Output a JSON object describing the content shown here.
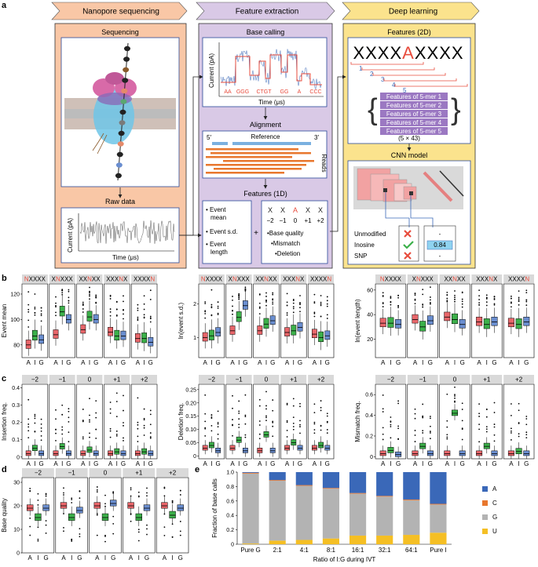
{
  "panel_labels": {
    "a": "a",
    "b": "b",
    "c": "c",
    "d": "d",
    "e": "e"
  },
  "pipeline": {
    "stages": [
      "Nanopore sequencing",
      "Feature extraction",
      "Deep learning"
    ],
    "nanopore": {
      "sequencing_title": "Sequencing",
      "raw_data_title": "Raw data",
      "raw_ylabel": "Current (pA)",
      "raw_xlabel": "Time (μs)"
    },
    "feature": {
      "base_calling_title": "Base calling",
      "bc_ylabel": "Current (pA)",
      "bc_xlabel": "Time (μs)",
      "bc_bases": [
        "AA",
        "GGG",
        "CTGT",
        "GG",
        "A",
        "CCC"
      ],
      "alignment_title": "Alignment",
      "ref_5": "5′",
      "ref_label": "Reference",
      "ref_3": "3′",
      "reads_label": "Reads",
      "features1d_title": "Features (1D)",
      "event_items": [
        "Event mean",
        "Event s.d.",
        "Event length"
      ],
      "plus": "+",
      "kmer_letters": [
        "X",
        "X",
        "A",
        "X",
        "X"
      ],
      "kmer_positions": [
        "−2",
        "−1",
        "0",
        "+1",
        "+2"
      ],
      "quality_items": [
        "Base quality",
        "Mismatch",
        "Deletion"
      ]
    },
    "deep": {
      "features2d_title": "Features (2D)",
      "sequence_left": "XXXX",
      "sequence_mid": "A",
      "sequence_right": "XXXX",
      "bracket_numbers": [
        "1",
        "2",
        "3",
        "4",
        "5"
      ],
      "feature_rows": [
        "Features of 5-mer 1",
        "Features of 5-mer 2",
        "Features of 5-mer 3",
        "Features of 5-mer 4",
        "Features of 5-mer 5"
      ],
      "matrix_size": "(5 × 43)",
      "cnn_title": "CNN model",
      "outputs": [
        {
          "label": "Unmodified",
          "mark": "cross",
          "value": "-"
        },
        {
          "label": "Inosine",
          "mark": "check",
          "value": "0.84"
        },
        {
          "label": "SNP",
          "mark": "cross",
          "value": "-"
        }
      ]
    }
  },
  "box_groups": [
    "A",
    "I",
    "G"
  ],
  "colors": {
    "A": "#e8666a",
    "I": "#3cb04a",
    "G": "#6a8ed0",
    "stage_orange": "#f9c7a6",
    "stage_purple": "#d9c9e6",
    "stage_yellow": "#fbe38d",
    "accent_red": "#e84c3d",
    "feature_purple": "#9b78c2"
  },
  "panel_b": {
    "facets": [
      {
        "plain_left": "",
        "red": "N",
        "plain_right": "XXXX"
      },
      {
        "plain_left": "X",
        "red": "N",
        "plain_right": "XXX"
      },
      {
        "plain_left": "XX",
        "red": "N",
        "plain_right": "XX"
      },
      {
        "plain_left": "XXX",
        "red": "N",
        "plain_right": "X"
      },
      {
        "plain_left": "XXXX",
        "red": "N",
        "plain_right": ""
      }
    ],
    "plots": [
      {
        "ylabel": "Event mean",
        "yticks": [
          "80",
          "100",
          "120"
        ],
        "ymin": 70,
        "ymax": 128,
        "medians": [
          [
            80,
            87,
            84
          ],
          [
            88,
            106,
            100
          ],
          [
            92,
            102,
            100
          ],
          [
            90,
            87,
            87
          ],
          [
            85,
            85,
            82
          ]
        ]
      },
      {
        "ylabel": "ln(event s.d.)",
        "yticks": [
          "1",
          "2"
        ],
        "ymin": 0.4,
        "ymax": 2.6,
        "medians": [
          [
            1.0,
            1.05,
            1.15
          ],
          [
            1.2,
            1.6,
            1.95
          ],
          [
            1.2,
            1.4,
            1.5
          ],
          [
            1.15,
            1.2,
            1.3
          ],
          [
            1.1,
            1.0,
            1.05
          ]
        ]
      },
      {
        "ylabel": "ln(event length)",
        "yticks": [
          "20",
          "40",
          "60"
        ],
        "ymin": 5,
        "ymax": 65,
        "medians": [
          [
            33,
            33,
            32
          ],
          [
            36,
            30,
            35
          ],
          [
            38,
            36,
            32
          ],
          [
            34,
            32,
            34
          ],
          [
            33,
            32,
            34
          ]
        ]
      }
    ]
  },
  "panel_c": {
    "facets": [
      "−2",
      "−1",
      "0",
      "+1",
      "+2"
    ],
    "plots": [
      {
        "ylabel": "Insertion freq.",
        "yticks": [
          "0",
          "0.1",
          "0.2",
          "0.3",
          "0.4"
        ],
        "ymin": -0.01,
        "ymax": 0.42,
        "medians": [
          [
            0.02,
            0.05,
            0.02
          ],
          [
            0.02,
            0.06,
            0.02
          ],
          [
            0.02,
            0.04,
            0.02
          ],
          [
            0.02,
            0.03,
            0.02
          ],
          [
            0.02,
            0.03,
            0.02
          ]
        ]
      },
      {
        "ylabel": "Deletion freq.",
        "yticks": [
          "0",
          "0.05",
          "0.10",
          "0.15",
          "0.20",
          "0.25"
        ],
        "ymin": -0.01,
        "ymax": 0.27,
        "medians": [
          [
            0.03,
            0.04,
            0.02
          ],
          [
            0.03,
            0.06,
            0.02
          ],
          [
            0.02,
            0.08,
            0.02
          ],
          [
            0.03,
            0.05,
            0.03
          ],
          [
            0.03,
            0.04,
            0.03
          ]
        ]
      },
      {
        "ylabel": "Mismatch freq.",
        "yticks": [
          "0",
          "0.2",
          "0.4",
          "0.6"
        ],
        "ymin": -0.02,
        "ymax": 0.7,
        "medians": [
          [
            0.03,
            0.06,
            0.02
          ],
          [
            0.03,
            0.1,
            0.03
          ],
          [
            0.03,
            0.42,
            0.03
          ],
          [
            0.03,
            0.1,
            0.03
          ],
          [
            0.03,
            0.05,
            0.03
          ]
        ]
      }
    ]
  },
  "panel_d": {
    "facets": [
      "−2",
      "−1",
      "0",
      "+1",
      "+2"
    ],
    "ylabel": "Base quality",
    "yticks": [
      "0",
      "10",
      "20",
      "30"
    ],
    "ymin": 0,
    "ymax": 32,
    "medians": [
      [
        19,
        15,
        19
      ],
      [
        20,
        15,
        18
      ],
      [
        20,
        15,
        21
      ],
      [
        20,
        15,
        19
      ],
      [
        20,
        16,
        19
      ]
    ]
  },
  "chart_data": {
    "type": "bar",
    "stacked": true,
    "categories": [
      "Pure G",
      "2:1",
      "4:1",
      "8:1",
      "16:1",
      "32:1",
      "64:1",
      "Pure I"
    ],
    "series": [
      {
        "name": "U",
        "values": [
          0.01,
          0.05,
          0.06,
          0.08,
          0.12,
          0.12,
          0.13,
          0.16
        ]
      },
      {
        "name": "G",
        "values": [
          0.97,
          0.83,
          0.75,
          0.69,
          0.58,
          0.54,
          0.48,
          0.39
        ]
      },
      {
        "name": "C",
        "values": [
          0.01,
          0.01,
          0.01,
          0.01,
          0.01,
          0.01,
          0.01,
          0.01
        ]
      },
      {
        "name": "A",
        "values": [
          0.01,
          0.11,
          0.18,
          0.22,
          0.29,
          0.33,
          0.38,
          0.44
        ]
      }
    ],
    "legend_order": [
      "A",
      "C",
      "G",
      "U"
    ],
    "series_colors": {
      "A": "#3a68b8",
      "C": "#e8772e",
      "G": "#b3b3b3",
      "U": "#f5bf24"
    },
    "xlabel": "Ratio of I:G during IVT",
    "ylabel": "Fraction of base calls",
    "yticks": [
      "0",
      "0.2",
      "0.4",
      "0.6",
      "0.8",
      "1.0"
    ],
    "ylim": [
      0,
      1.0
    ],
    "legend_position": "right"
  }
}
